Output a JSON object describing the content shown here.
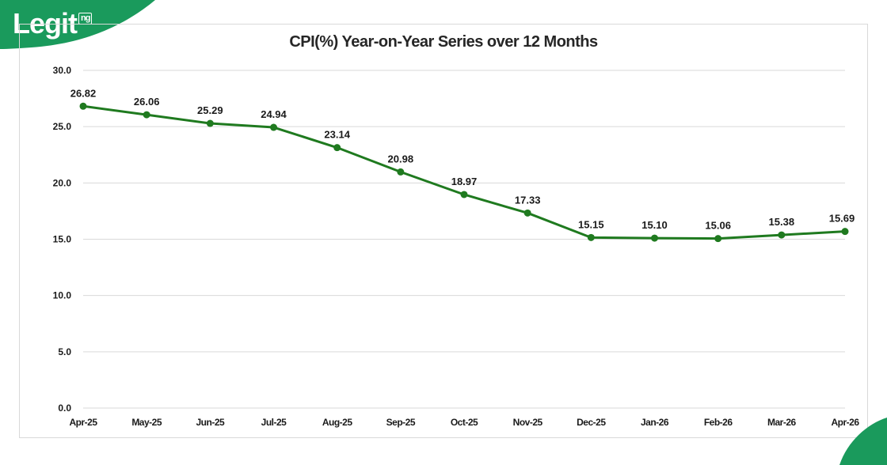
{
  "brand": {
    "logo_text": "Legit",
    "logo_suffix": "ng",
    "color": "#1a9a5c"
  },
  "chart_data": {
    "type": "line",
    "title": "CPI(%) Year-on-Year Series over 12 Months",
    "xlabel": "",
    "ylabel": "",
    "categories": [
      "Apr-25",
      "May-25",
      "Jun-25",
      "Jul-25",
      "Aug-25",
      "Sep-25",
      "Oct-25",
      "Nov-25",
      "Dec-25",
      "Jan-26",
      "Feb-26",
      "Mar-26",
      "Apr-26"
    ],
    "series": [
      {
        "values": [
          26.82,
          26.06,
          25.29,
          24.94,
          23.14,
          20.98,
          18.97,
          17.33,
          15.15,
          15.1,
          15.06,
          15.38,
          15.69
        ],
        "labels": [
          "26.82",
          "26.06",
          "25.29",
          "24.94",
          "23.14",
          "20.98",
          "18.97",
          "17.33",
          "15.15",
          "15.10",
          "15.06",
          "15.38",
          "15.69"
        ],
        "color": "#1f7a1f"
      }
    ],
    "ylim": [
      0,
      30
    ],
    "yticks": [
      "0.0",
      "5.0",
      "10.0",
      "15.0",
      "20.0",
      "25.0",
      "30.0"
    ],
    "ytick_values": [
      0,
      5,
      10,
      15,
      20,
      25,
      30
    ],
    "grid": true,
    "gridline_color": "#d9d9d9",
    "legend": "none"
  }
}
